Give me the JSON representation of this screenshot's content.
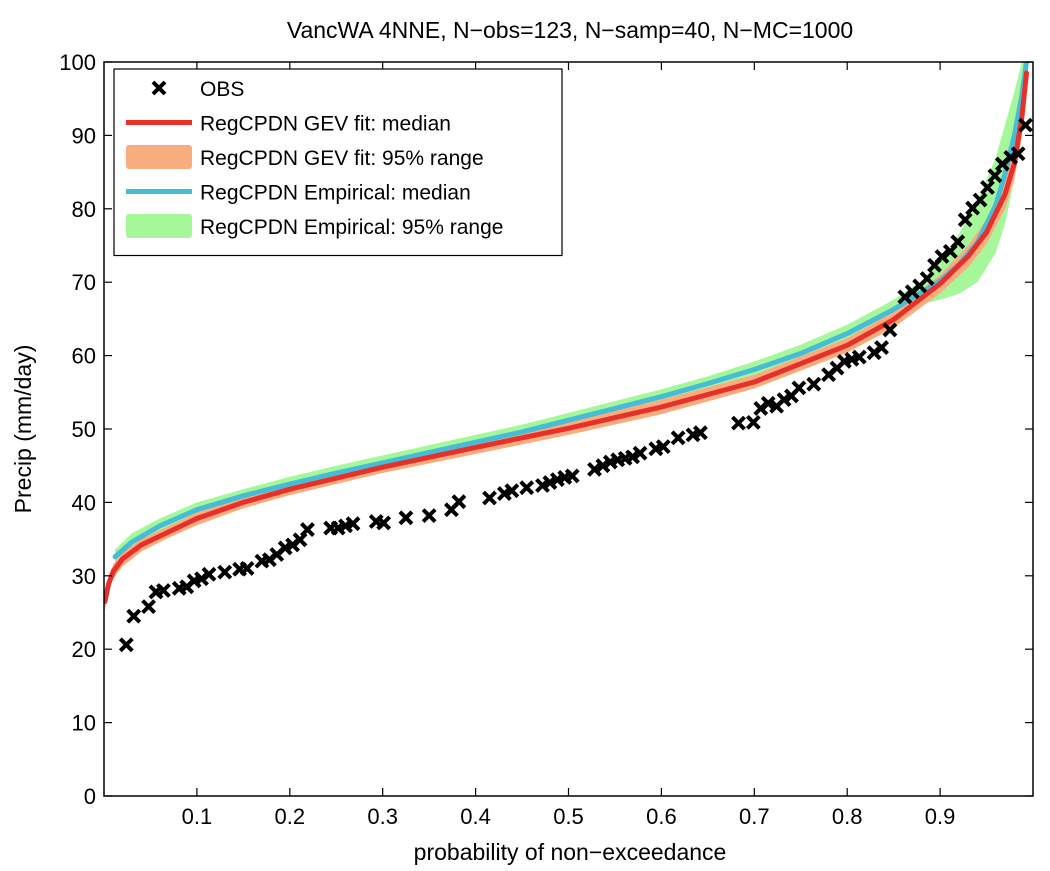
{
  "chart_data": {
    "type": "line",
    "title": "VancWA 4NNE, N−obs=123, N−samp=40, N−MC=1000",
    "xlabel": "probability of non−exceedance",
    "ylabel": "Precip (mm/day)",
    "xlim": [
      0,
      1
    ],
    "ylim": [
      0,
      100
    ],
    "xticks": [
      0.1,
      0.2,
      0.3,
      0.4,
      0.5,
      0.6,
      0.7,
      0.8,
      0.9
    ],
    "xtick_labels": [
      "0.1",
      "0.2",
      "0.3",
      "0.4",
      "0.5",
      "0.6",
      "0.7",
      "0.8",
      "0.9"
    ],
    "yticks": [
      0,
      10,
      20,
      30,
      40,
      50,
      60,
      70,
      80,
      90,
      100
    ],
    "ytick_labels": [
      "0",
      "10",
      "20",
      "30",
      "40",
      "50",
      "60",
      "70",
      "80",
      "90",
      "100"
    ],
    "grid": false,
    "legend_position": "top-left",
    "legend": [
      {
        "label": "OBS",
        "style": "marker",
        "color": "#000000"
      },
      {
        "label": "RegCPDN GEV fit: median",
        "style": "line",
        "color": "#e8302a"
      },
      {
        "label": "RegCPDN GEV fit: 95% range",
        "style": "band",
        "color": "#f8ad7e"
      },
      {
        "label": "RegCPDN Empirical: median",
        "style": "line",
        "color": "#45bcd8"
      },
      {
        "label": "RegCPDN Empirical: 95% range",
        "style": "band",
        "color": "#a6f79a"
      }
    ],
    "series": [
      {
        "name": "RegCPDN Empirical: 95% range",
        "kind": "band",
        "color": "#a6f79a",
        "x": [
          0.012,
          0.03,
          0.06,
          0.1,
          0.15,
          0.2,
          0.25,
          0.3,
          0.35,
          0.4,
          0.45,
          0.5,
          0.55,
          0.6,
          0.65,
          0.7,
          0.75,
          0.8,
          0.85,
          0.88,
          0.9,
          0.92,
          0.94,
          0.96,
          0.97,
          0.98,
          0.988,
          0.993
        ],
        "low": [
          31.8,
          33.5,
          35.8,
          38.0,
          40.0,
          41.5,
          43.0,
          44.5,
          45.8,
          47.3,
          48.7,
          50.2,
          51.8,
          53.4,
          55.2,
          57.0,
          59.2,
          62.0,
          65.2,
          67.0,
          67.6,
          68.4,
          70.0,
          74.0,
          78.0,
          84.0,
          91.0,
          97.0
        ],
        "high": [
          33.6,
          35.8,
          37.8,
          40.0,
          41.8,
          43.5,
          45.0,
          46.4,
          47.8,
          49.2,
          50.6,
          52.2,
          53.8,
          55.4,
          57.2,
          59.2,
          61.5,
          64.2,
          67.6,
          70.2,
          72.8,
          76.5,
          81.0,
          87.0,
          91.5,
          96.0,
          100.0,
          100.0
        ]
      },
      {
        "name": "RegCPDN GEV fit: 95% range",
        "kind": "band",
        "color": "#f8ad7e",
        "x": [
          0.001,
          0.005,
          0.01,
          0.02,
          0.04,
          0.07,
          0.1,
          0.15,
          0.2,
          0.3,
          0.4,
          0.5,
          0.6,
          0.7,
          0.8,
          0.85,
          0.9,
          0.93,
          0.95,
          0.97,
          0.98,
          0.988,
          0.993
        ],
        "low": [
          25.2,
          27.8,
          29.6,
          31.3,
          33.3,
          35.2,
          36.9,
          39.2,
          41.0,
          44.0,
          46.6,
          49.2,
          52.0,
          55.5,
          60.4,
          63.8,
          68.5,
          72.0,
          75.2,
          80.0,
          84.0,
          90.0,
          96.0
        ],
        "high": [
          27.8,
          30.0,
          31.6,
          33.2,
          35.0,
          36.8,
          38.6,
          40.8,
          42.6,
          45.6,
          48.4,
          51.0,
          54.0,
          57.4,
          62.4,
          66.0,
          71.0,
          75.0,
          78.5,
          84.0,
          88.5,
          95.0,
          100.0
        ]
      },
      {
        "name": "RegCPDN Empirical: median",
        "kind": "line",
        "color": "#45bcd8",
        "x": [
          0.012,
          0.03,
          0.06,
          0.1,
          0.15,
          0.2,
          0.25,
          0.3,
          0.35,
          0.4,
          0.45,
          0.5,
          0.55,
          0.6,
          0.65,
          0.7,
          0.75,
          0.8,
          0.85,
          0.88,
          0.9,
          0.92,
          0.94,
          0.96,
          0.97,
          0.98,
          0.988,
          0.993
        ],
        "y": [
          32.6,
          34.6,
          36.8,
          39.0,
          40.9,
          42.5,
          44.0,
          45.4,
          46.8,
          48.2,
          49.6,
          51.2,
          52.8,
          54.4,
          56.2,
          58.1,
          60.3,
          63.0,
          66.3,
          68.6,
          70.2,
          72.4,
          75.4,
          80.5,
          84.8,
          90.0,
          95.5,
          100.0
        ]
      },
      {
        "name": "RegCPDN GEV fit: median",
        "kind": "line",
        "color": "#e8302a",
        "x": [
          0.001,
          0.005,
          0.01,
          0.02,
          0.04,
          0.07,
          0.1,
          0.15,
          0.2,
          0.3,
          0.4,
          0.5,
          0.6,
          0.7,
          0.8,
          0.85,
          0.9,
          0.93,
          0.95,
          0.97,
          0.98,
          0.988,
          0.993
        ],
        "y": [
          26.5,
          28.9,
          30.6,
          32.3,
          34.2,
          36.0,
          37.8,
          40.0,
          41.8,
          44.8,
          47.5,
          50.1,
          53.0,
          56.4,
          61.4,
          64.9,
          69.8,
          73.5,
          76.8,
          82.0,
          86.2,
          92.5,
          98.5
        ]
      },
      {
        "name": "OBS",
        "kind": "scatter",
        "color": "#000000",
        "x": [
          0.024,
          0.032,
          0.048,
          0.056,
          0.064,
          0.081,
          0.089,
          0.097,
          0.105,
          0.113,
          0.13,
          0.146,
          0.154,
          0.17,
          0.178,
          0.186,
          0.195,
          0.203,
          0.211,
          0.219,
          0.244,
          0.252,
          0.26,
          0.268,
          0.293,
          0.301,
          0.325,
          0.35,
          0.374,
          0.382,
          0.415,
          0.431,
          0.439,
          0.455,
          0.472,
          0.48,
          0.488,
          0.496,
          0.504,
          0.528,
          0.537,
          0.545,
          0.553,
          0.561,
          0.569,
          0.577,
          0.594,
          0.602,
          0.618,
          0.634,
          0.642,
          0.683,
          0.699,
          0.707,
          0.715,
          0.724,
          0.732,
          0.74,
          0.748,
          0.764,
          0.78,
          0.789,
          0.797,
          0.805,
          0.813,
          0.829,
          0.837,
          0.846,
          0.862,
          0.87,
          0.878,
          0.886,
          0.894,
          0.902,
          0.911,
          0.919,
          0.927,
          0.935,
          0.943,
          0.951,
          0.959,
          0.967,
          0.976,
          0.984,
          0.992
        ],
        "y": [
          20.6,
          24.5,
          25.8,
          27.8,
          28.0,
          28.3,
          28.5,
          29.3,
          29.6,
          30.2,
          30.5,
          30.9,
          31.0,
          32.0,
          32.2,
          32.9,
          33.8,
          34.2,
          34.9,
          36.3,
          36.5,
          36.5,
          36.8,
          37.1,
          37.4,
          37.2,
          37.9,
          38.2,
          39.0,
          40.1,
          40.6,
          41.2,
          41.6,
          42.0,
          42.3,
          42.7,
          43.1,
          43.4,
          43.6,
          44.5,
          45.0,
          45.5,
          45.8,
          46.0,
          46.2,
          46.7,
          47.3,
          47.6,
          48.8,
          49.2,
          49.5,
          50.8,
          50.9,
          52.8,
          53.5,
          53.1,
          54.0,
          54.5,
          55.6,
          56.1,
          57.4,
          58.3,
          59.2,
          59.5,
          59.8,
          60.4,
          61.1,
          63.5,
          68.0,
          68.7,
          69.5,
          70.5,
          72.3,
          73.5,
          74.2,
          75.5,
          78.5,
          80.1,
          81.2,
          82.9,
          84.5,
          86.1,
          87.0,
          87.5,
          91.4
        ]
      }
    ]
  }
}
